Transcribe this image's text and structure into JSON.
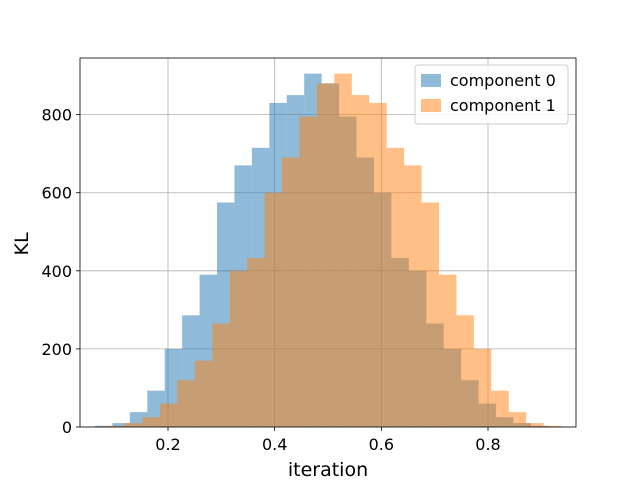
{
  "chart_data": {
    "type": "bar",
    "subtype": "overlapping-histogram",
    "title": "",
    "xlabel": "iteration",
    "ylabel": "KL",
    "xlim": [
      0.035,
      0.965
    ],
    "ylim": [
      0,
      945
    ],
    "xticks": [
      0.2,
      0.4,
      0.6,
      0.8
    ],
    "xtick_labels": [
      "0.2",
      "0.4",
      "0.6",
      "0.8"
    ],
    "yticks": [
      0,
      200,
      400,
      600,
      800
    ],
    "ytick_labels": [
      "0",
      "200",
      "400",
      "600",
      "800"
    ],
    "grid": true,
    "legend_position": "top-right",
    "series": [
      {
        "name": "component 0",
        "color": "#1f77b4",
        "alpha": 0.5,
        "bin_edges": [
          0.063,
          0.0957,
          0.1284,
          0.1611,
          0.1938,
          0.2265,
          0.2592,
          0.2919,
          0.3246,
          0.3573,
          0.39,
          0.4227,
          0.4554,
          0.4881,
          0.5208,
          0.5535,
          0.5862,
          0.6189,
          0.6516,
          0.6843,
          0.717,
          0.7497,
          0.7824,
          0.8151,
          0.8478,
          0.8805,
          0.9132,
          0.94
        ],
        "counts": [
          3,
          10,
          38,
          93,
          200,
          286,
          390,
          575,
          670,
          715,
          830,
          850,
          905,
          880,
          795,
          690,
          600,
          433,
          400,
          265,
          200,
          120,
          60,
          25,
          10,
          3,
          1
        ]
      },
      {
        "name": "component 1",
        "color": "#ff7f0e",
        "alpha": 0.5,
        "bin_edges": [
          0.06,
          0.0868,
          0.1195,
          0.1522,
          0.1849,
          0.2176,
          0.2503,
          0.283,
          0.3157,
          0.3484,
          0.3811,
          0.4138,
          0.4465,
          0.4792,
          0.5119,
          0.5446,
          0.5773,
          0.61,
          0.6427,
          0.6754,
          0.7081,
          0.7408,
          0.7735,
          0.8062,
          0.8389,
          0.8716,
          0.9043,
          0.937
        ],
        "counts": [
          1,
          3,
          10,
          25,
          60,
          120,
          170,
          265,
          400,
          433,
          600,
          690,
          795,
          880,
          905,
          850,
          830,
          715,
          670,
          575,
          390,
          286,
          200,
          93,
          38,
          10,
          3
        ]
      }
    ]
  }
}
